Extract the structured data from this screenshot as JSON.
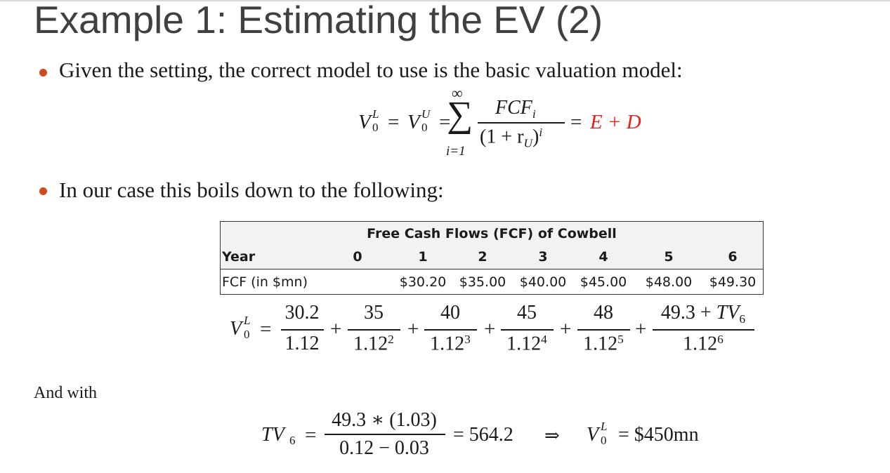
{
  "title": "Example 1: Estimating the EV (2)",
  "bullets": [
    "Given the setting, the correct model to use is the basic valuation model:",
    "In our case this boils down to the following:"
  ],
  "formula1": {
    "lhs_V": "V",
    "lhs_sup": "L",
    "lhs_sub": "0",
    "eq1": "=",
    "mid_V": "V",
    "mid_sup": "U",
    "mid_sub": "0",
    "eq2": "=",
    "sum_upper": "∞",
    "sum_symbol": "∑",
    "sum_lower": "i=1",
    "num_main": "FCF",
    "num_sub": "i",
    "den_open": "(1 + r",
    "den_sub": "U",
    "den_close": ")",
    "den_sup": "i",
    "eq3": "=",
    "rhs": "E + D",
    "rhs_color": "#e8201a"
  },
  "table": {
    "title": "Free Cash Flows (FCF) of Cowbell",
    "year_label": "Year",
    "years": [
      "0",
      "1",
      "2",
      "3",
      "4",
      "5",
      "6"
    ],
    "fcf_label": "FCF (in $mn)",
    "fcf_values": [
      "",
      "$30.20",
      "$35.00",
      "$40.00",
      "$45.00",
      "$48.00",
      "$49.30"
    ],
    "header_bg": "#f2f2f2"
  },
  "formula2": {
    "V": "V",
    "sup": "L",
    "sub": "0",
    "eq": "=",
    "terms": [
      {
        "num": "30.2",
        "den_base": "1.12",
        "den_exp": ""
      },
      {
        "num": "35",
        "den_base": "1.12",
        "den_exp": "2"
      },
      {
        "num": "40",
        "den_base": "1.12",
        "den_exp": "3"
      },
      {
        "num": "45",
        "den_base": "1.12",
        "den_exp": "4"
      },
      {
        "num": "48",
        "den_base": "1.12",
        "den_exp": "5"
      },
      {
        "num_pre": "49.3 + ",
        "num_TV": "TV",
        "num_sub": "6",
        "den_base": "1.12",
        "den_exp": "6"
      }
    ],
    "plus": "+"
  },
  "and_with": "And with",
  "formula3": {
    "TV": "TV",
    "TV_sub": "6",
    "eq1": "=",
    "num": "49.3 ∗ (1.03)",
    "den": "0.12 − 0.03",
    "eq2": "= 564.2",
    "implies": "⇒",
    "V": "V",
    "V_sup": "L",
    "V_sub": "0",
    "result": "= $450mn"
  },
  "accent_color": "#d04a1d"
}
